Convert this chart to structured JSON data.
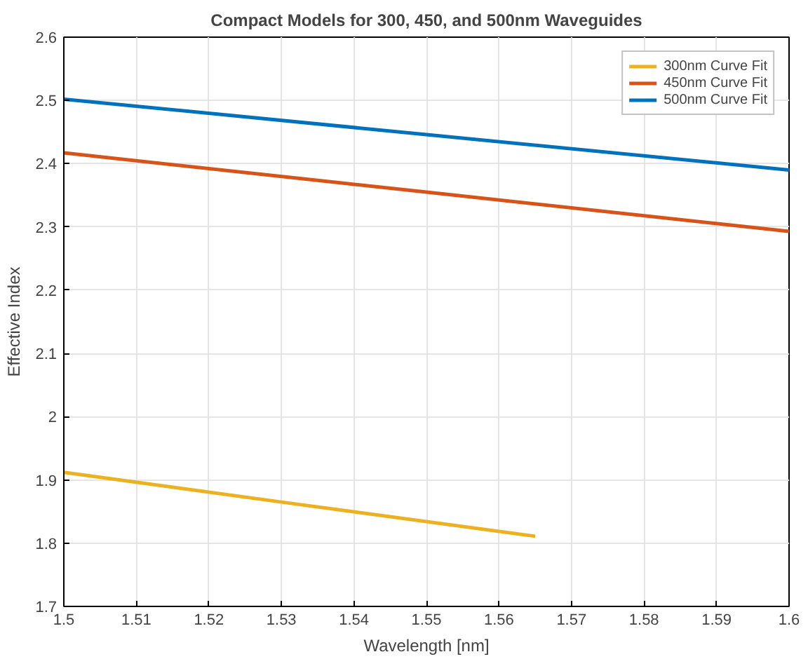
{
  "chart_data": {
    "type": "line",
    "title": "Compact Models for 300, 450, and 500nm Waveguides",
    "xlabel": "Wavelength [nm]",
    "ylabel": "Effective Index",
    "series": [
      {
        "name": "300nm Curve Fit",
        "color": "#edb120",
        "x": [
          1.5,
          1.53,
          1.565
        ],
        "values": [
          1.912,
          1.865,
          1.811
        ]
      },
      {
        "name": "450nm Curve Fit",
        "color": "#d95319",
        "x": [
          1.5,
          1.55,
          1.6
        ],
        "values": [
          2.417,
          2.355,
          2.293
        ]
      },
      {
        "name": "500nm Curve Fit",
        "color": "#0072bd",
        "x": [
          1.5,
          1.55,
          1.6
        ],
        "values": [
          2.502,
          2.446,
          2.39
        ]
      }
    ],
    "xlim": [
      1.5,
      1.6
    ],
    "xticks": [
      1.5,
      1.51,
      1.52,
      1.53,
      1.54,
      1.55,
      1.56,
      1.57,
      1.58,
      1.59,
      1.6
    ],
    "ylim": [
      1.7,
      2.6
    ],
    "yticks": [
      1.7,
      1.8,
      1.9,
      2,
      2.1,
      2.2,
      2.3,
      2.4,
      2.5,
      2.6
    ],
    "grid": true,
    "legend": "top right",
    "marker": "none",
    "line_style": "solid"
  }
}
